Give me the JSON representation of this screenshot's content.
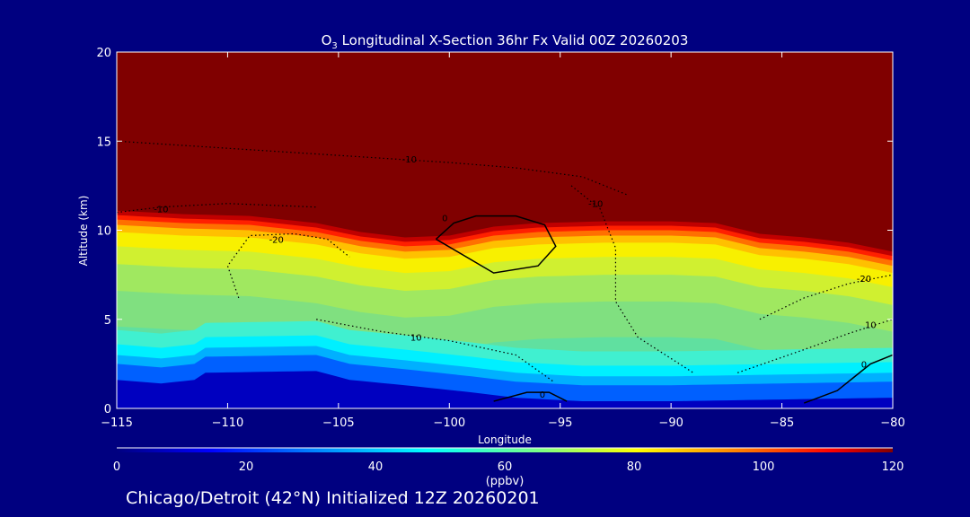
{
  "chart_data": {
    "type": "heatmap",
    "title_prefix": "O",
    "title_subscript": "3",
    "title": " Longitudinal X-Section 36hr  Fx Valid 00Z 20260203",
    "xlabel": "Longitude",
    "ylabel": "Altitude (km)",
    "xlim": [
      -115,
      -80
    ],
    "ylim": [
      0,
      20
    ],
    "xticks": [
      -115,
      -110,
      -105,
      -100,
      -95,
      -90,
      -85,
      -80
    ],
    "xtick_labels": [
      "−115",
      "−110",
      "−105",
      "−100",
      "−95",
      "−90",
      "−85",
      "−80"
    ],
    "yticks": [
      0,
      5,
      10,
      15,
      20
    ],
    "ytick_labels": [
      "0",
      "5",
      "10",
      "15",
      "20"
    ],
    "tropopause_km": [
      [
        -115,
        11.1
      ],
      [
        -112,
        10.9
      ],
      [
        -109,
        10.8
      ],
      [
        -106,
        10.4
      ],
      [
        -104,
        9.9
      ],
      [
        -102,
        9.6
      ],
      [
        -100,
        9.7
      ],
      [
        -98,
        10.2
      ],
      [
        -96,
        10.4
      ],
      [
        -93,
        10.5
      ],
      [
        -90,
        10.5
      ],
      [
        -88,
        10.4
      ],
      [
        -86,
        9.8
      ],
      [
        -84,
        9.6
      ],
      [
        -82,
        9.3
      ],
      [
        -80,
        8.8
      ]
    ],
    "low_ozone_top_km": [
      [
        -115,
        1.6
      ],
      [
        -113,
        1.4
      ],
      [
        -111.5,
        1.6
      ],
      [
        -111,
        2.0
      ],
      [
        -106,
        2.1
      ],
      [
        -104.5,
        1.6
      ],
      [
        -102,
        1.3
      ],
      [
        -99,
        0.9
      ],
      [
        -97,
        0.6
      ],
      [
        -94,
        0.4
      ],
      [
        -90,
        0.4
      ],
      [
        -85,
        0.5
      ],
      [
        -80,
        0.6
      ]
    ],
    "colorbar": {
      "ticks": [
        0,
        20,
        40,
        60,
        80,
        100,
        120
      ],
      "tick_labels": [
        "0",
        "20",
        "40",
        "60",
        "80",
        "100",
        "120"
      ],
      "label": "(ppbv)",
      "range": [
        0,
        120
      ]
    },
    "contours": [
      {
        "label": "0",
        "style": "solid",
        "label_at": [
          -100.2,
          10.7
        ],
        "points": [
          [
            -100.6,
            9.5
          ],
          [
            -99.8,
            10.4
          ],
          [
            -98.8,
            10.8
          ],
          [
            -97,
            10.8
          ],
          [
            -95.7,
            10.3
          ],
          [
            -95.2,
            9.1
          ],
          [
            -96,
            8.0
          ],
          [
            -98,
            7.6
          ],
          [
            -100.6,
            9.5
          ]
        ]
      },
      {
        "label": "-10",
        "style": "dotted",
        "label_at": [
          -101.8,
          14.0
        ],
        "points": [
          [
            -115,
            15.0
          ],
          [
            -110,
            14.6
          ],
          [
            -105,
            14.2
          ],
          [
            -100,
            13.8
          ],
          [
            -97,
            13.5
          ],
          [
            -94,
            13.0
          ],
          [
            -92,
            12.0
          ]
        ]
      },
      {
        "label": "-10",
        "style": "dotted",
        "label_at": [
          -113,
          11.2
        ],
        "points": [
          [
            -115,
            11.0
          ],
          [
            -113,
            11.3
          ],
          [
            -110,
            11.5
          ],
          [
            -106,
            11.3
          ]
        ]
      },
      {
        "label": "-20",
        "style": "dotted",
        "label_at": [
          -107.8,
          9.5
        ],
        "points": [
          [
            -109.5,
            6.2
          ],
          [
            -110,
            8.0
          ],
          [
            -109,
            9.7
          ],
          [
            -107,
            9.8
          ],
          [
            -105.5,
            9.5
          ],
          [
            -104.5,
            8.5
          ]
        ]
      },
      {
        "label": "-10",
        "style": "dotted",
        "label_at": [
          -93.4,
          11.5
        ],
        "points": [
          [
            -94.5,
            12.5
          ],
          [
            -93.2,
            11.2
          ],
          [
            -92.5,
            9.0
          ],
          [
            -92.5,
            6.0
          ],
          [
            -91.5,
            4.0
          ],
          [
            -89,
            2.0
          ]
        ]
      },
      {
        "label": "10",
        "style": "dotted",
        "label_at": [
          -101.5,
          4.0
        ],
        "points": [
          [
            -106,
            5.0
          ],
          [
            -103,
            4.3
          ],
          [
            -100,
            3.8
          ],
          [
            -97,
            3.0
          ],
          [
            -95.3,
            1.5
          ]
        ]
      },
      {
        "label": "-20",
        "style": "dotted",
        "label_at": [
          -81.3,
          7.3
        ],
        "points": [
          [
            -86,
            5.0
          ],
          [
            -84,
            6.2
          ],
          [
            -82,
            7.0
          ],
          [
            -80,
            7.5
          ]
        ]
      },
      {
        "label": "10",
        "style": "dotted",
        "label_at": [
          -81,
          4.7
        ],
        "points": [
          [
            -87,
            2.0
          ],
          [
            -84,
            3.3
          ],
          [
            -82,
            4.2
          ],
          [
            -80,
            5.0
          ]
        ]
      },
      {
        "label": "0",
        "style": "solid",
        "label_at": [
          -81.3,
          2.5
        ],
        "points": [
          [
            -84,
            0.3
          ],
          [
            -82.5,
            1.0
          ],
          [
            -81.8,
            1.7
          ],
          [
            -81,
            2.5
          ],
          [
            -80,
            3.0
          ]
        ]
      },
      {
        "label": "0",
        "style": "solid",
        "label_at": [
          -95.8,
          0.8
        ],
        "points": [
          [
            -98,
            0.4
          ],
          [
            -96.5,
            0.9
          ],
          [
            -95.5,
            0.9
          ],
          [
            -94.7,
            0.4
          ]
        ]
      }
    ]
  },
  "footer": {
    "caption": "Chicago/Detroit (42°N) Initialized 12Z 20260201"
  }
}
